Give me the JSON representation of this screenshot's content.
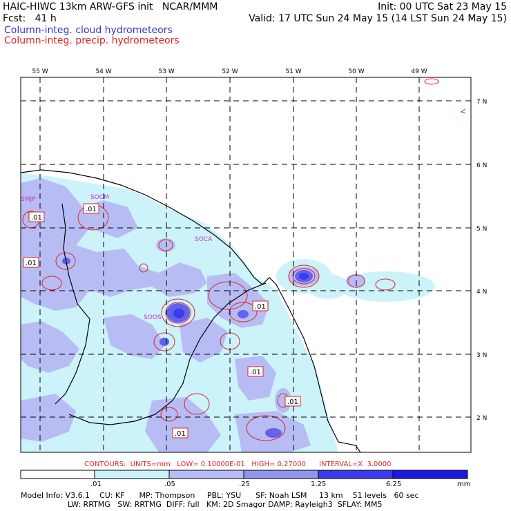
{
  "header": {
    "title_left": "HAIC-HIWC 13km ARW-GFS init   NCAR/MMM",
    "init": "Init: 00 UTC Sat 23 May 15",
    "fcst": "Fcst:   41 h",
    "valid": "Valid: 17 UTC Sun 24 May 15 (14 LST Sun 24 May 15)",
    "field1": "Column-integ. cloud hydrometeors",
    "field2": "Column-integ. precip. hydrometeors"
  },
  "colors": {
    "cloud_field": "#3333cc",
    "precip_field": "#dd2222",
    "shade1": "#ccf2fa",
    "shade2": "#b7bdf4",
    "shade3": "#8f95ec",
    "shade4": "#6262ec",
    "shade5": "#3b3bee",
    "shade6": "#1a1ae6",
    "station": "#cc33cc"
  },
  "map": {
    "lon_labels": [
      "55 W",
      "54 W",
      "53 W",
      "52 W",
      "51 W",
      "50 W",
      "49 W"
    ],
    "lat_labels": [
      "7 N",
      "6 N",
      "5 N",
      "4 N",
      "3 N",
      "2 N"
    ],
    "stations": [
      "SMJP",
      "SOCM",
      "SOCA",
      "SOOS"
    ],
    "contour_labels": [
      ".01",
      ".01",
      ".01",
      ".01",
      ".01",
      ".01",
      ".01"
    ]
  },
  "contours_info": "CONTOURS:  UNITS=mm   LOW= 0.10000E-01   HIGH= 0.27000      INTERVAL=X  3.0000",
  "colorbar": {
    "ticks": [
      ".01",
      ".05",
      ".25",
      "1.25",
      "6.25"
    ],
    "units": "mm"
  },
  "footer": {
    "line1": "Model Info: V3.6.1    CU: KF      MP: Thompson     PBL: YSU      SF: Noah LSM     13 km    51 levels   60 sec",
    "line2": "LW: RRTMG   SW: RRTMG  DIFF: full   KM: 2D Smagor DAMP: Rayleigh3  SFLAY: MM5"
  }
}
